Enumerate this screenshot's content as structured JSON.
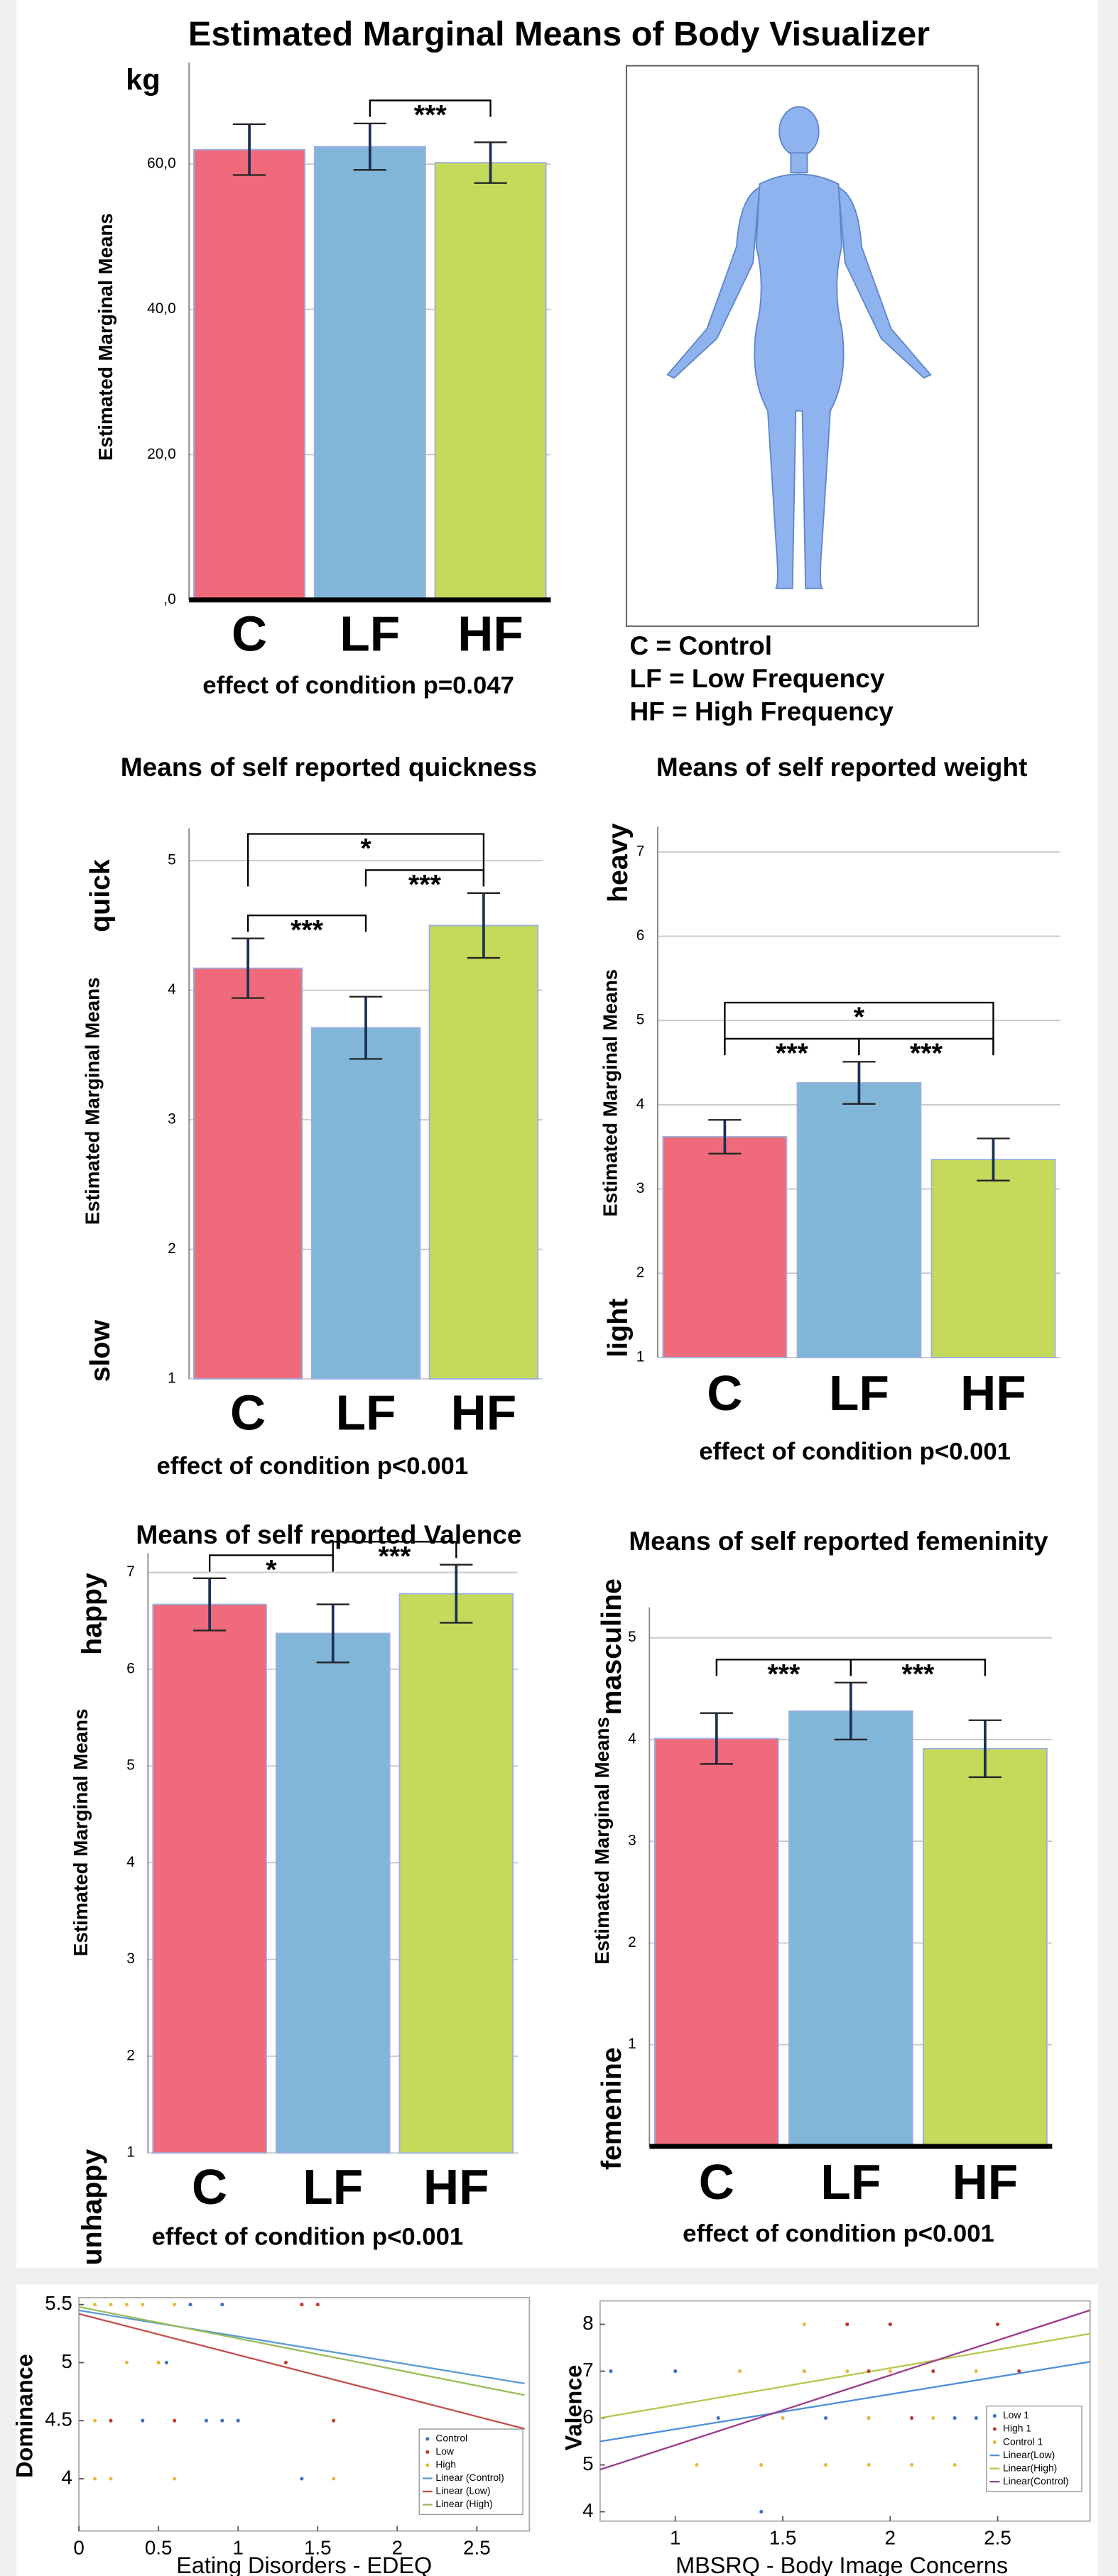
{
  "chart_data": [
    {
      "type": "bar",
      "title": "Estimated Marginal Means of Body Visualizer",
      "unit": "kg",
      "ylabel": "Estimated Marginal Means",
      "categories": [
        "C",
        "LF",
        "HF"
      ],
      "values": [
        62,
        62.4,
        60.2
      ],
      "errors": [
        3.5,
        3.2,
        2.8
      ],
      "colors": [
        "#ef6b7b",
        "#82b6d8",
        "#c5d95a"
      ],
      "ylim": [
        0,
        74
      ],
      "yticks": [
        {
          "value": 0,
          "label": ",0"
        },
        {
          "value": 20,
          "label": "20,0"
        },
        {
          "value": 40,
          "label": "40,0"
        },
        {
          "value": 60,
          "label": "60,0"
        }
      ],
      "grid": true,
      "note": "effect of condition p=0.047",
      "brackets": [
        {
          "pair": [
            "LF",
            "HF"
          ],
          "label": "***"
        }
      ],
      "legend_notes": [
        "C = Control",
        "LF = Low Frequency",
        "HF = High Frequency"
      ]
    },
    {
      "type": "bar",
      "title": "Means of self reported quickness",
      "ylabel": "Estimated Marginal Means",
      "top_label": "quick",
      "bottom_label": "slow",
      "categories": [
        "C",
        "LF",
        "HF"
      ],
      "values": [
        4.17,
        3.71,
        4.5
      ],
      "errors": [
        0.23,
        0.24,
        0.25
      ],
      "colors": [
        "#ef6b7b",
        "#82b6d8",
        "#c5d95a"
      ],
      "ylim": [
        1,
        5.25
      ],
      "yticks": [
        1,
        2,
        3,
        4,
        5
      ],
      "grid": true,
      "note": "effect of condition p<0.001",
      "brackets": [
        {
          "pair": [
            "C",
            "LF"
          ],
          "label": "***"
        },
        {
          "pair": [
            "LF",
            "HF"
          ],
          "label": "***"
        },
        {
          "pair": [
            "C",
            "HF"
          ],
          "label": "*"
        }
      ]
    },
    {
      "type": "bar",
      "title": "Means of self reported weight",
      "ylabel": "Estimated Marginal Means",
      "top_label": "heavy",
      "bottom_label": "light",
      "categories": [
        "C",
        "LF",
        "HF"
      ],
      "values": [
        3.62,
        4.26,
        3.35
      ],
      "errors": [
        0.2,
        0.25,
        0.25
      ],
      "colors": [
        "#ef6b7b",
        "#82b6d8",
        "#c5d95a"
      ],
      "ylim": [
        1,
        7.3
      ],
      "yticks": [
        1,
        2,
        3,
        4,
        5,
        6,
        7
      ],
      "grid": true,
      "note": "effect of condition p<0.001",
      "brackets": [
        {
          "pair": [
            "C",
            "LF"
          ],
          "label": "***"
        },
        {
          "pair": [
            "LF",
            "HF"
          ],
          "label": "***"
        },
        {
          "pair": [
            "C",
            "HF"
          ],
          "label": "*"
        }
      ]
    },
    {
      "type": "bar",
      "title": "Means of self reported Valence",
      "ylabel": "Estimated Marginal Means",
      "top_label": "happy",
      "bottom_label": "unhappy",
      "categories": [
        "C",
        "LF",
        "HF"
      ],
      "values": [
        6.67,
        6.37,
        6.78
      ],
      "errors": [
        0.27,
        0.3,
        0.3
      ],
      "colors": [
        "#ef6b7b",
        "#82b6d8",
        "#c5d95a"
      ],
      "ylim": [
        1,
        7.2
      ],
      "yticks": [
        1,
        2,
        3,
        4,
        5,
        6,
        7
      ],
      "grid": true,
      "note": "effect of condition p<0.001",
      "brackets": [
        {
          "pair": [
            "C",
            "LF"
          ],
          "label": "*"
        },
        {
          "pair": [
            "LF",
            "HF"
          ],
          "label": "***"
        }
      ]
    },
    {
      "type": "bar",
      "title": "Means of self reported femeninity",
      "ylabel": "Estimated Marginal Means",
      "top_label": "masculine",
      "bottom_label": "femenine",
      "categories": [
        "C",
        "LF",
        "HF"
      ],
      "values": [
        4.01,
        4.28,
        3.91
      ],
      "errors": [
        0.25,
        0.28,
        0.28
      ],
      "colors": [
        "#ef6b7b",
        "#82b6d8",
        "#c5d95a"
      ],
      "ylim": [
        0,
        5.3
      ],
      "yticks": [
        1,
        2,
        3,
        4,
        5
      ],
      "grid": true,
      "note": "effect of condition p<0.001",
      "brackets": [
        {
          "pair": [
            "C",
            "LF"
          ],
          "label": "***"
        },
        {
          "pair": [
            "LF",
            "HF"
          ],
          "label": "***"
        }
      ]
    },
    {
      "type": "scatter",
      "xlabel": "Eating Disorders - EDEQ",
      "ylabel": "Dominance",
      "xlim": [
        0,
        2.83
      ],
      "xticks": [
        0,
        0.5,
        1,
        1.5,
        2,
        2.5
      ],
      "ylim": [
        3.55,
        5.56
      ],
      "yticks": [
        4,
        4.5,
        5,
        5.5
      ],
      "series": [
        {
          "name": "Control",
          "color": "#3b6fc4",
          "x": [
            0.7,
            0.9,
            1.4,
            0.8,
            0.9,
            1.0,
            0.4,
            1.4,
            0.55
          ],
          "values": [
            5.5,
            5.5,
            5.5,
            4.5,
            4.5,
            4.5,
            4.5,
            4,
            5
          ]
        },
        {
          "name": "Low",
          "color": "#c0392b",
          "x": [
            1.4,
            1.5,
            0.5,
            0.6,
            0.2,
            1.6,
            1.3
          ],
          "values": [
            5.5,
            5.5,
            5,
            4.5,
            4.5,
            4.5,
            5
          ]
        },
        {
          "name": "High",
          "color": "#e8b83a",
          "x": [
            0.1,
            0.2,
            0.3,
            0.4,
            0.6,
            0.3,
            0.5,
            0.1,
            0.2,
            0.6,
            1.6,
            0.1
          ],
          "values": [
            5.5,
            5.5,
            5.5,
            5.5,
            5.5,
            5,
            5,
            4,
            4,
            4,
            4,
            4.5
          ]
        }
      ],
      "fits": [
        {
          "name": "Linear (Control)",
          "color": "#5b9bd5",
          "x": [
            0,
            2.8
          ],
          "values": [
            5.45,
            4.82
          ]
        },
        {
          "name": "Linear (Low)",
          "color": "#c0504d",
          "x": [
            0,
            2.8
          ],
          "values": [
            5.42,
            4.43
          ]
        },
        {
          "name": "Linear (High)",
          "color": "#9bbb59",
          "x": [
            0,
            2.8
          ],
          "values": [
            5.48,
            4.72
          ]
        }
      ]
    },
    {
      "type": "scatter",
      "xlabel": "MBSRQ - Body Image Concerns",
      "ylabel": "Valence",
      "xlim": [
        0.65,
        2.93
      ],
      "xticks": [
        1,
        1.5,
        2,
        2.5
      ],
      "ylim": [
        3.8,
        8.5
      ],
      "yticks": [
        4,
        5,
        6,
        7,
        8
      ],
      "series": [
        {
          "name": "Low 1",
          "color": "#3b6fc4",
          "x": [
            0.7,
            1.0,
            1.2,
            1.5,
            1.7,
            1.9,
            2.1,
            2.3,
            2.4,
            1.8,
            2.0,
            1.4
          ],
          "values": [
            7,
            7,
            6,
            6,
            6,
            6,
            6,
            6,
            6,
            8,
            8,
            4
          ]
        },
        {
          "name": "High 1",
          "color": "#c0392b",
          "x": [
            1.8,
            2.0,
            2.5,
            1.6,
            1.9,
            2.2,
            2.6,
            2.1
          ],
          "values": [
            8,
            8,
            8,
            7,
            7,
            7,
            7,
            6
          ]
        },
        {
          "name": "Control 1",
          "color": "#e8b83a",
          "x": [
            1.1,
            1.4,
            1.7,
            1.9,
            2.1,
            2.3,
            1.3,
            1.6,
            1.8,
            2.0,
            2.4,
            1.5,
            1.9,
            2.2,
            1.6
          ],
          "values": [
            5,
            5,
            5,
            5,
            5,
            5,
            7,
            7,
            7,
            7,
            7,
            6,
            6,
            6,
            8
          ]
        }
      ],
      "fits": [
        {
          "name": "Linear(Low)",
          "color": "#4a90d9",
          "x": [
            0.65,
            2.93
          ],
          "values": [
            5.5,
            7.2
          ]
        },
        {
          "name": "Linear(High)",
          "color": "#b5c64a",
          "x": [
            0.65,
            2.93
          ],
          "values": [
            6.0,
            7.8
          ]
        },
        {
          "name": "Linear(Control)",
          "color": "#9b3b8e",
          "x": [
            0.65,
            2.93
          ],
          "values": [
            4.9,
            8.3
          ]
        }
      ]
    }
  ]
}
